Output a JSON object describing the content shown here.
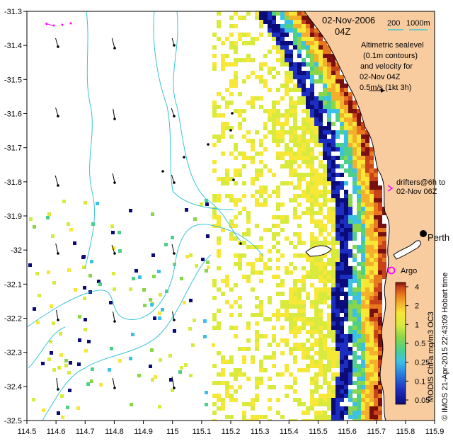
{
  "map": {
    "title_date": "02-Nov-2006",
    "title_time": "04Z",
    "scale_labels": [
      "200",
      "1000m"
    ],
    "legend_lines": [
      "Altimetric sealevel",
      "(0.1m contours)",
      "and velocity for",
      "02-Nov 04Z",
      "0.5m/s (1kt 3h)"
    ],
    "drifters_lines": [
      "drifters@6h to",
      "02-Nov 06Z"
    ],
    "city_label": "Perth",
    "argo_label": "Argo",
    "credit_label": "© IMOS 21-Apr-2015 22:43:09 Hobart time",
    "colorbar_title": "MODIS Chl-a mg/m3 OC3",
    "colorbar_ticks": [
      "4",
      "2",
      "1",
      "0.5",
      "0.25",
      "0.1",
      "0.05"
    ],
    "x_ticks": [
      "114.5",
      "114.6",
      "114.7",
      "114.8",
      "114.9",
      "115",
      "115.1",
      "115.2",
      "115.3",
      "115.4",
      "115.5",
      "115.6",
      "115.7",
      "115.8",
      "115.9"
    ],
    "y_ticks": [
      "-31.3",
      "-31.4",
      "-31.5",
      "-31.6",
      "-31.7",
      "-31.8",
      "-31.9",
      "-32",
      "-32.1",
      "-32.2",
      "-32.3",
      "-32.4",
      "-32.5"
    ],
    "colors": {
      "land": "#f9cc9f",
      "contour": "#38c4d6",
      "drifter": "#ff00ff",
      "argo": "#ff00ff",
      "chl_scale": [
        "#0b0b7a",
        "#1c2ec1",
        "#2a7fe0",
        "#3cc0e6",
        "#4dd08a",
        "#8ad64a",
        "#d8ea3c",
        "#f7e736",
        "#f4b02a",
        "#e8781e",
        "#c8431a",
        "#7a0f0f"
      ]
    }
  }
}
